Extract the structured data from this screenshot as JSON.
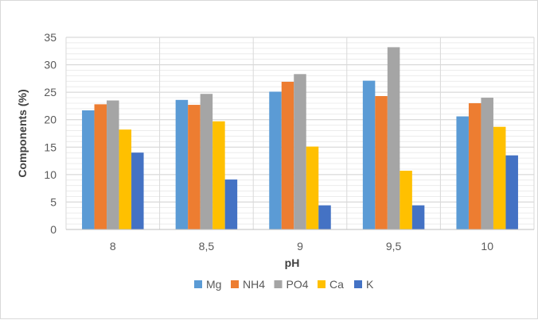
{
  "chart_data": {
    "type": "bar",
    "title": "",
    "xlabel": "pH",
    "ylabel": "Components (%)",
    "categories": [
      "8",
      "8,5",
      "9",
      "9,5",
      "10"
    ],
    "ylim": [
      0,
      35
    ],
    "yticks": [
      0,
      5,
      10,
      15,
      20,
      25,
      30,
      35
    ],
    "grid": "horizontal major and minor",
    "legend_position": "bottom",
    "series": [
      {
        "name": "Mg",
        "color": "#5B9BD5",
        "values": [
          21.7,
          23.6,
          25.1,
          27.1,
          20.6
        ]
      },
      {
        "name": "NH4",
        "color": "#ED7D31",
        "values": [
          22.8,
          22.7,
          26.9,
          24.3,
          23.0
        ]
      },
      {
        "name": "PO4",
        "color": "#A5A5A5",
        "values": [
          23.5,
          24.7,
          28.3,
          33.2,
          24.0
        ]
      },
      {
        "name": "Ca",
        "color": "#FFC000",
        "values": [
          18.2,
          19.7,
          15.1,
          10.7,
          18.7
        ]
      },
      {
        "name": "K",
        "color": "#4472C4",
        "values": [
          14.0,
          9.1,
          4.4,
          4.4,
          13.5
        ]
      }
    ]
  }
}
